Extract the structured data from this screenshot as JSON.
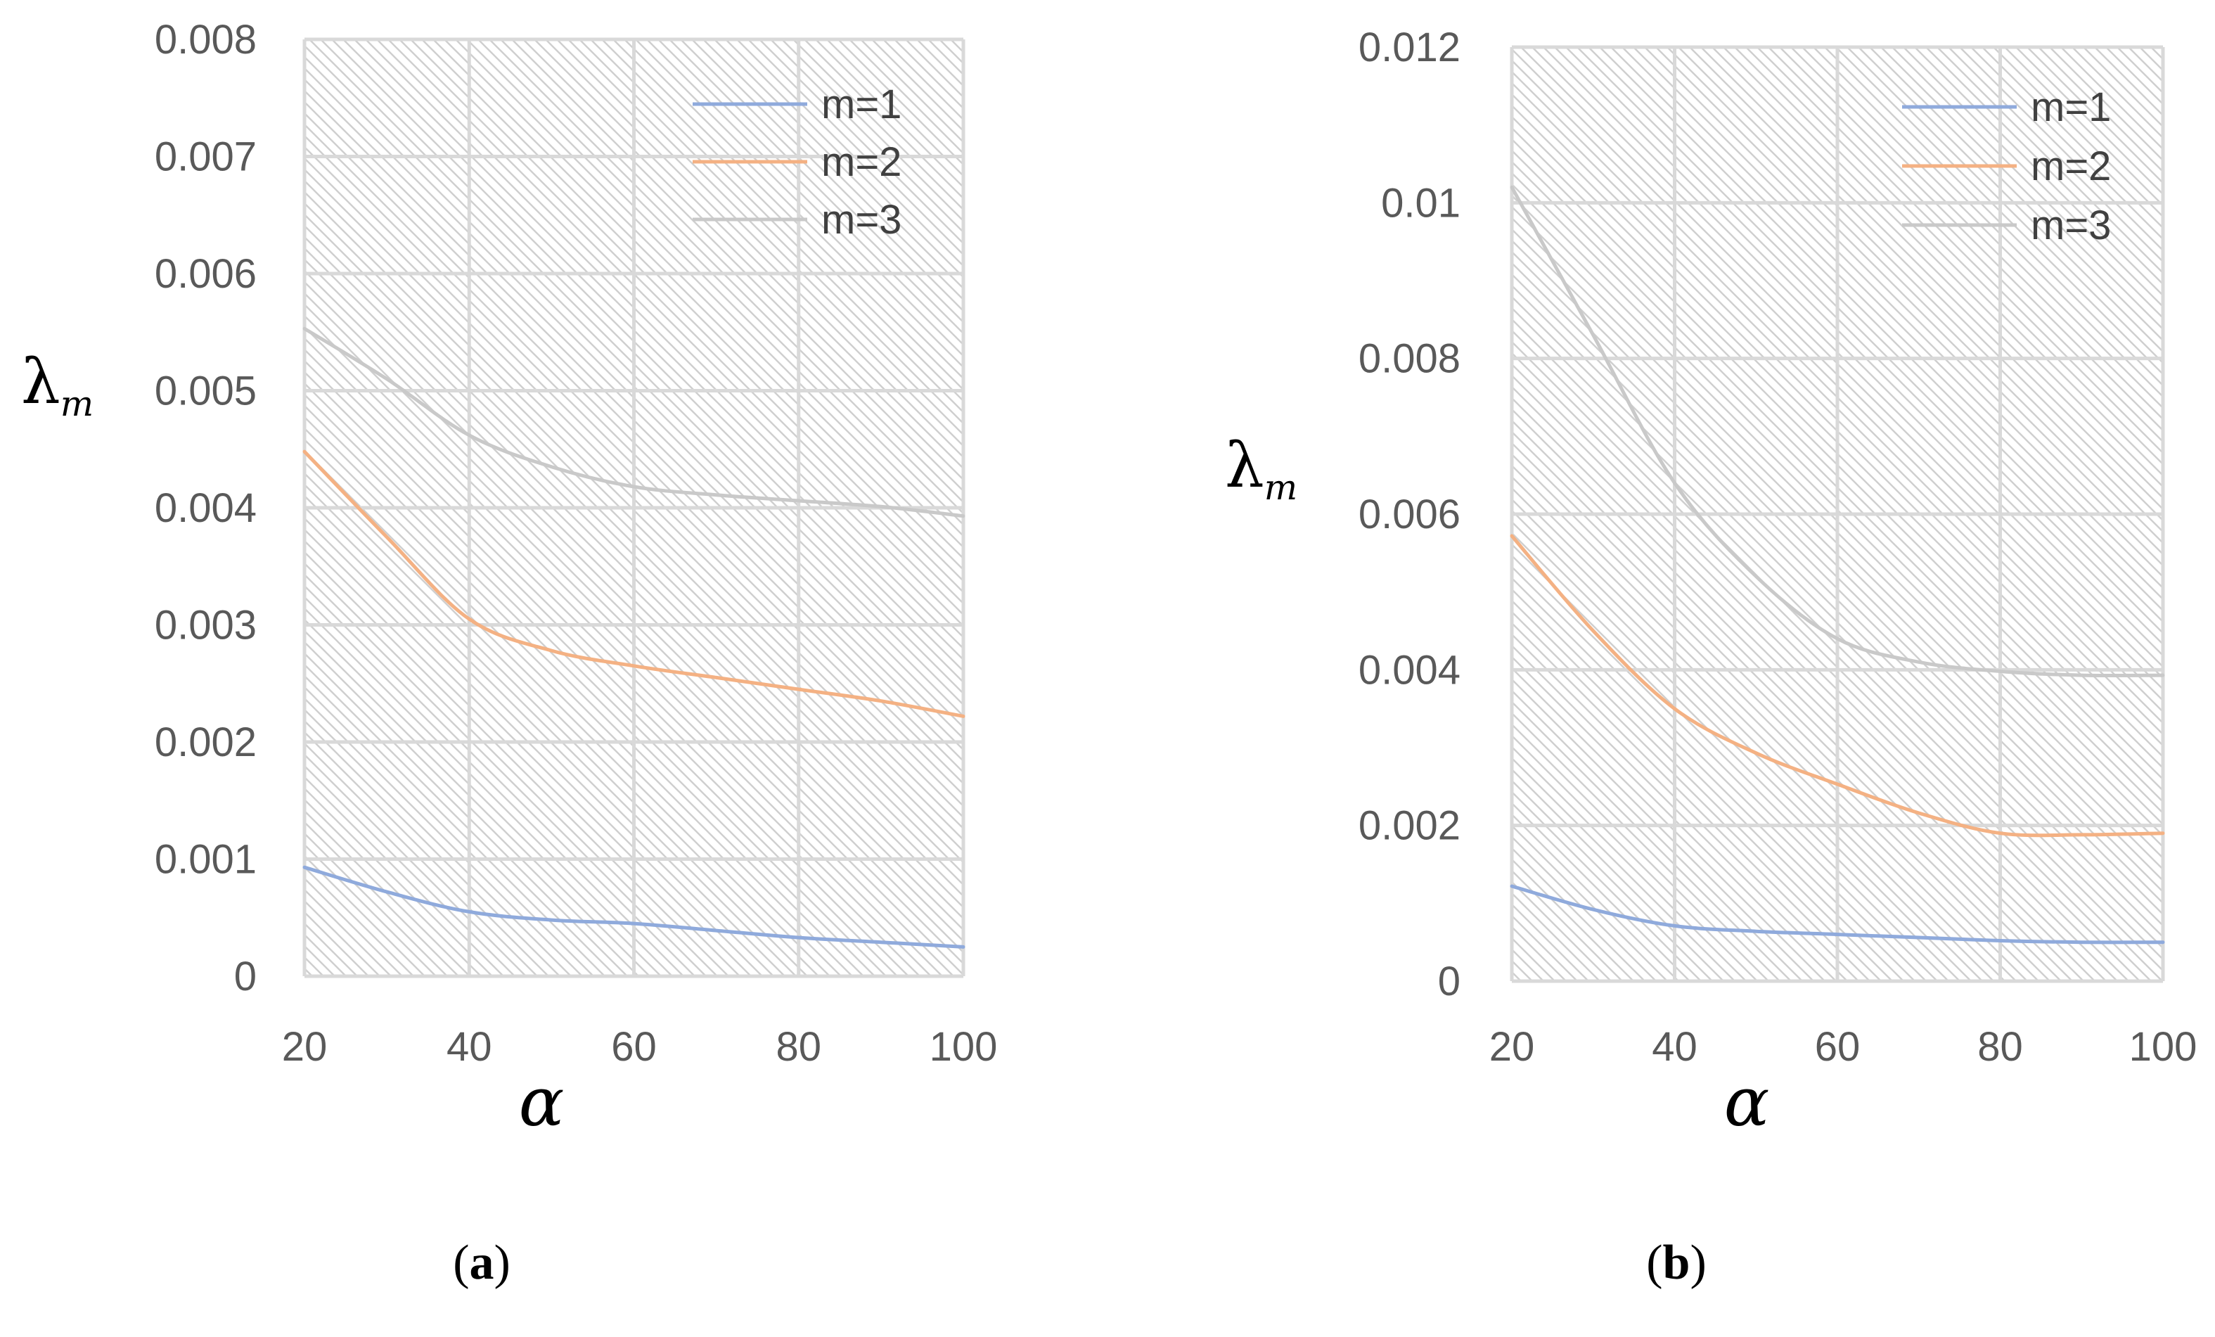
{
  "chart_data": [
    {
      "type": "line",
      "panel_label": "(a)",
      "panel_letter": "a",
      "xlabel": "α",
      "ylabel": "λ",
      "ylabel_subscript": "m",
      "xlim": [
        20,
        100
      ],
      "ylim": [
        0,
        0.008
      ],
      "x_ticks": [
        20,
        40,
        60,
        80,
        100
      ],
      "x_tick_labels": [
        "20",
        "40",
        "60",
        "80",
        "100"
      ],
      "y_ticks": [
        0,
        0.001,
        0.002,
        0.003,
        0.004,
        0.005,
        0.006,
        0.007,
        0.008
      ],
      "y_tick_labels": [
        "0",
        "0.001",
        "0.002",
        "0.003",
        "0.004",
        "0.005",
        "0.006",
        "0.007",
        "0.008"
      ],
      "grid": true,
      "legend_position": "top-right",
      "x": [
        20,
        30,
        40,
        50,
        60,
        70,
        80,
        90,
        100
      ],
      "series": [
        {
          "name": "m=1",
          "color": "#8faadc",
          "values": [
            0.00093,
            0.00072,
            0.00055,
            0.00048,
            0.00045,
            0.00039,
            0.00033,
            0.00029,
            0.00025
          ]
        },
        {
          "name": "m=2",
          "color": "#f4b183",
          "values": [
            0.00448,
            0.00375,
            0.00305,
            0.00278,
            0.00265,
            0.00255,
            0.00245,
            0.00235,
            0.00222
          ]
        },
        {
          "name": "m=3",
          "color": "#c9c9c9",
          "values": [
            0.00553,
            0.0051,
            0.00462,
            0.00435,
            0.00418,
            0.00411,
            0.00406,
            0.00401,
            0.00393
          ]
        }
      ]
    },
    {
      "type": "line",
      "panel_label": "(b)",
      "panel_letter": "b",
      "xlabel": "α",
      "ylabel": "λ",
      "ylabel_subscript": "m",
      "xlim": [
        20,
        100
      ],
      "ylim": [
        0,
        0.012
      ],
      "x_ticks": [
        20,
        40,
        60,
        80,
        100
      ],
      "x_tick_labels": [
        "20",
        "40",
        "60",
        "80",
        "100"
      ],
      "y_ticks": [
        0,
        0.002,
        0.004,
        0.006,
        0.008,
        0.01,
        0.012
      ],
      "y_tick_labels": [
        "0",
        "0.002",
        "0.004",
        "0.006",
        "0.008",
        "0.01",
        "0.012"
      ],
      "grid": true,
      "legend_position": "top-right",
      "x": [
        20,
        30,
        40,
        50,
        60,
        70,
        80,
        90,
        100
      ],
      "series": [
        {
          "name": "m=1",
          "color": "#8faadc",
          "values": [
            0.00122,
            0.00092,
            0.00071,
            0.00064,
            0.0006,
            0.00056,
            0.00052,
            0.0005,
            0.0005
          ]
        },
        {
          "name": "m=2",
          "color": "#f4b183",
          "values": [
            0.00572,
            0.0045,
            0.0035,
            0.00293,
            0.00253,
            0.00216,
            0.0019,
            0.00188,
            0.0019
          ]
        },
        {
          "name": "m=3",
          "color": "#c9c9c9",
          "values": [
            0.0102,
            0.0083,
            0.0064,
            0.0052,
            0.0044,
            0.0041,
            0.00398,
            0.00393,
            0.00393
          ]
        }
      ]
    }
  ]
}
